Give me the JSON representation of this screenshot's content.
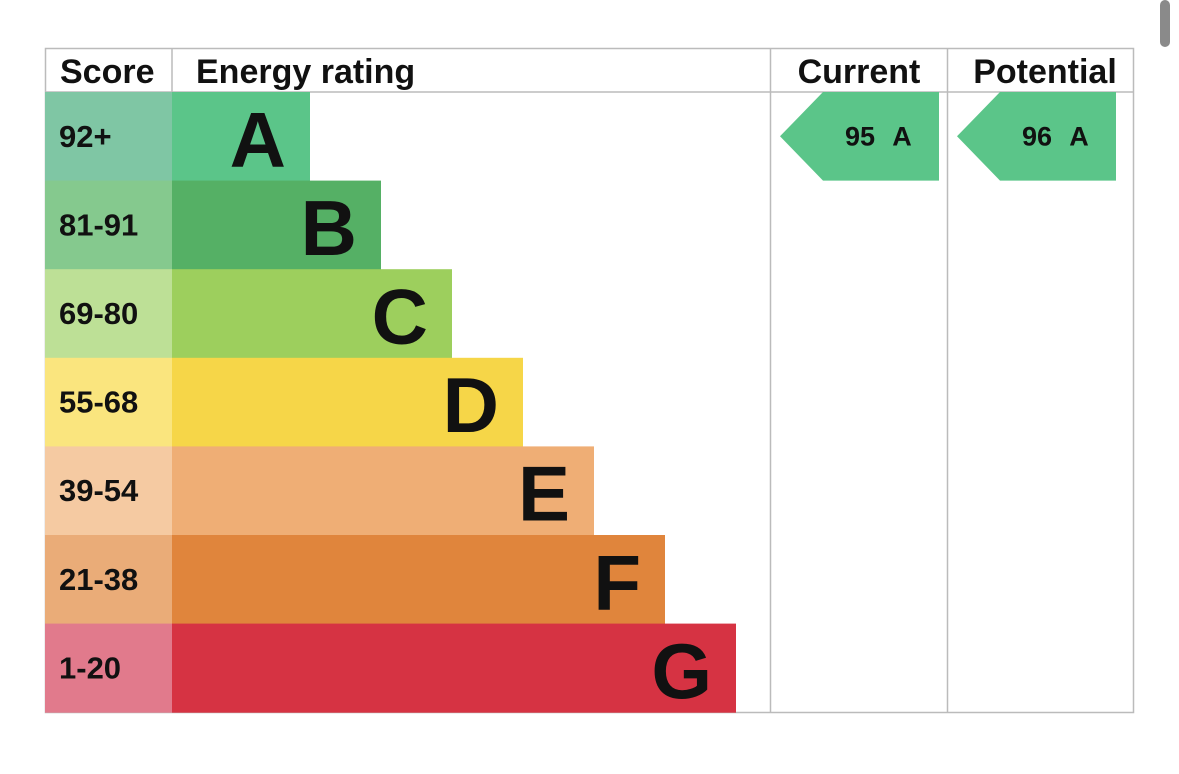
{
  "headers": [
    "Score",
    "Energy rating",
    "Current",
    "Potential"
  ],
  "bands": [
    {
      "score": "92+",
      "rating": "A",
      "color": "#5bc589",
      "score_color": "#7fc6a4"
    },
    {
      "score": "81-91",
      "rating": "B",
      "color": "#55b065",
      "score_color": "#85c98e"
    },
    {
      "score": "69-80",
      "rating": "C",
      "color": "#9dcf5d",
      "score_color": "#bde096"
    },
    {
      "score": "55-68",
      "rating": "D",
      "color": "#f6d648",
      "score_color": "#fae57e"
    },
    {
      "score": "39-54",
      "rating": "E",
      "color": "#efae75",
      "score_color": "#f5caa2"
    },
    {
      "score": "21-38",
      "rating": "F",
      "color": "#e0853c",
      "score_color": "#eaac78"
    },
    {
      "score": "1-20",
      "rating": "G",
      "color": "#d63343",
      "score_color": "#e17a8c"
    }
  ],
  "current": {
    "score": 95,
    "rating": "A"
  },
  "potential": {
    "score": 96,
    "rating": "A"
  }
}
